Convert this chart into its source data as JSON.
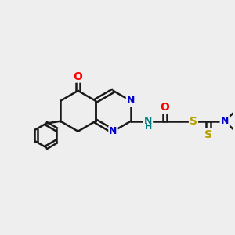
{
  "bg_color": "#eeeeee",
  "bond_color": "#1a1a1a",
  "bond_width": 1.8,
  "atom_colors": {
    "O": "#ff0000",
    "N": "#0000cd",
    "S": "#b8a000",
    "NH": "#008080",
    "C": "#1a1a1a"
  },
  "font_size": 9,
  "fig_size": [
    3.0,
    3.0
  ],
  "dpi": 100
}
